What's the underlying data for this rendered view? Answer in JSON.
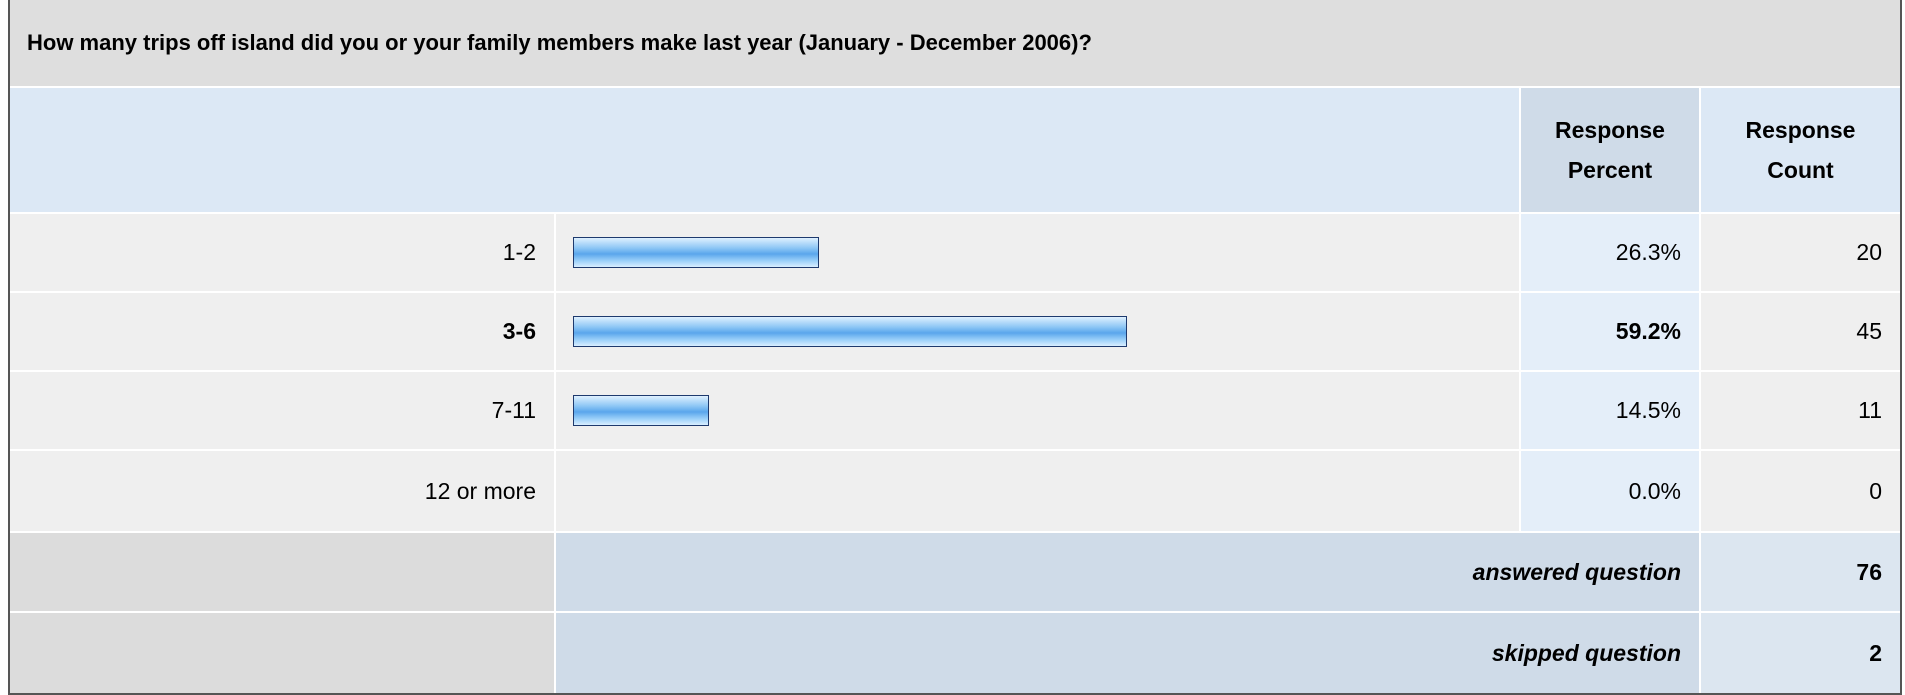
{
  "title": "How many trips off island did you or your family members make last year (January - December 2006)?",
  "header": {
    "percent": "Response Percent",
    "count": "Response Count"
  },
  "rows": [
    {
      "label": "1-2",
      "percent": 26.3,
      "percent_label": "26.3%",
      "count": 20
    },
    {
      "label": "3-6",
      "percent": 59.2,
      "percent_label": "59.2%",
      "count": 45
    },
    {
      "label": "7-11",
      "percent": 14.5,
      "percent_label": "14.5%",
      "count": 11
    },
    {
      "label": "12 or more",
      "percent": 0.0,
      "percent_label": "0.0%",
      "count": 0
    }
  ],
  "answered": {
    "label": "answered question",
    "count": 76
  },
  "skipped": {
    "label": "skipped question",
    "count": 2
  }
}
